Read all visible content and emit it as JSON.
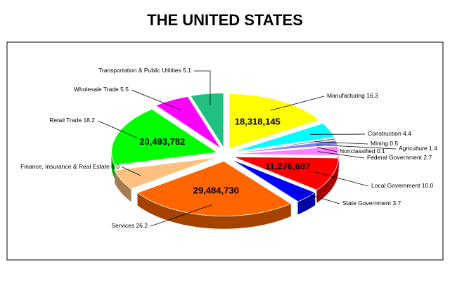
{
  "chart_data": {
    "type": "pie",
    "title": "THE UNITED STATES",
    "categories": [
      "Manufacturing",
      "Construction",
      "Mining",
      "Agriculture",
      "Nonclassified",
      "Federal Government",
      "Local Government",
      "State Government",
      "Services",
      "Finance, Insurance & Real Estate",
      "Retail Trade",
      "Wholesale Trade",
      "Transportation & Public Utilities"
    ],
    "values": [
      16.3,
      4.4,
      0.5,
      1.4,
      0.1,
      2.7,
      10.0,
      3.7,
      26.2,
      6.0,
      18.2,
      5.5,
      5.1
    ],
    "value_labels": [
      "16.3",
      "4.4",
      "0.5",
      "1.4",
      "0.1",
      "2.7",
      "10.0",
      "3.7",
      "26.2",
      "6.0",
      "18.2",
      "5.5",
      "5.1"
    ],
    "count_labels": [
      "18,318,145",
      null,
      null,
      null,
      null,
      null,
      "11,276,687",
      null,
      "29,484,730",
      null,
      "20,493,782",
      null,
      null
    ],
    "colors": [
      "#ffff00",
      "#00ffff",
      "#808080",
      "#8080ff",
      "#c0c0c0",
      "#ff80ff",
      "#ff0000",
      "#0000ff",
      "#ff6600",
      "#ffc080",
      "#00ff00",
      "#ff00ff",
      "#20c080"
    ]
  }
}
